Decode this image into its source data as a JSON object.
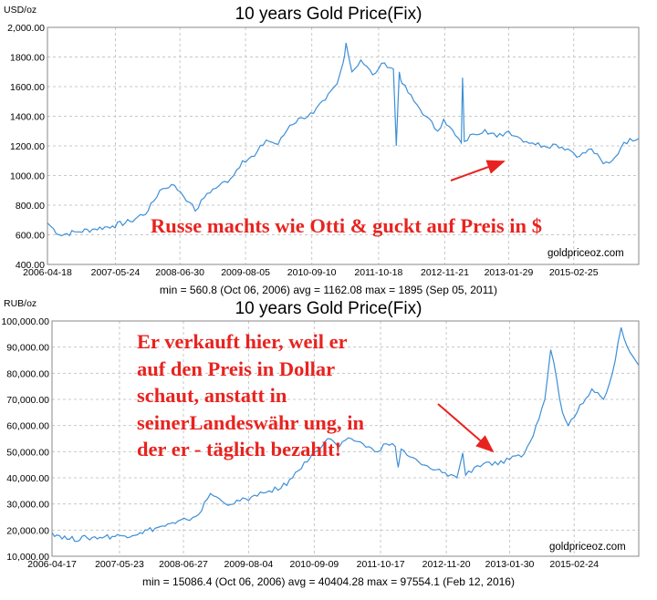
{
  "chart_data": [
    {
      "type": "line",
      "title": "10 years Gold Price(Fix)",
      "unit_label": "USD/oz",
      "x_tick_labels": [
        "2006-04-18",
        "2007-05-24",
        "2008-06-30",
        "2009-08-05",
        "2010-09-10",
        "2011-10-18",
        "2012-11-21",
        "2013-01-29",
        "2015-02-25"
      ],
      "y_tick_labels": [
        "400.00",
        "600.00",
        "800.00",
        "1000.00",
        "1200.00",
        "1400.00",
        "1600.00",
        "1800.00",
        "2,000.00"
      ],
      "ylim": [
        400,
        2000
      ],
      "grid": true,
      "stats": "min = 560.8 (Oct 06, 2006)   avg = 1162.08   max = 1895 (Sep 05, 2011)",
      "credit": "goldpriceoz.com",
      "series": [
        {
          "values": [
            [
              0,
              680
            ],
            [
              0.02,
              600
            ],
            [
              0.05,
              620
            ],
            [
              0.08,
              640
            ],
            [
              0.11,
              660
            ],
            [
              0.14,
              690
            ],
            [
              0.17,
              760
            ],
            [
              0.19,
              900
            ],
            [
              0.21,
              940
            ],
            [
              0.225,
              890
            ],
            [
              0.24,
              820
            ],
            [
              0.25,
              760
            ],
            [
              0.27,
              880
            ],
            [
              0.29,
              930
            ],
            [
              0.31,
              980
            ],
            [
              0.33,
              1100
            ],
            [
              0.35,
              1130
            ],
            [
              0.37,
              1240
            ],
            [
              0.39,
              1210
            ],
            [
              0.41,
              1340
            ],
            [
              0.43,
              1390
            ],
            [
              0.45,
              1420
            ],
            [
              0.47,
              1510
            ],
            [
              0.49,
              1620
            ],
            [
              0.5,
              1760
            ],
            [
              0.505,
              1895
            ],
            [
              0.515,
              1700
            ],
            [
              0.53,
              1780
            ],
            [
              0.55,
              1680
            ],
            [
              0.56,
              1720
            ],
            [
              0.57,
              1760
            ],
            [
              0.585,
              1720
            ],
            [
              0.59,
              1200
            ],
            [
              0.595,
              1700
            ],
            [
              0.6,
              1620
            ],
            [
              0.62,
              1500
            ],
            [
              0.64,
              1400
            ],
            [
              0.66,
              1300
            ],
            [
              0.67,
              1380
            ],
            [
              0.68,
              1330
            ],
            [
              0.69,
              1270
            ],
            [
              0.7,
              1220
            ],
            [
              0.702,
              1660
            ],
            [
              0.705,
              1230
            ],
            [
              0.72,
              1280
            ],
            [
              0.74,
              1310
            ],
            [
              0.76,
              1260
            ],
            [
              0.78,
              1300
            ],
            [
              0.8,
              1250
            ],
            [
              0.82,
              1220
            ],
            [
              0.84,
              1200
            ],
            [
              0.86,
              1210
            ],
            [
              0.88,
              1180
            ],
            [
              0.9,
              1130
            ],
            [
              0.92,
              1180
            ],
            [
              0.94,
              1080
            ],
            [
              0.955,
              1100
            ],
            [
              0.97,
              1190
            ],
            [
              0.985,
              1250
            ],
            [
              1.0,
              1250
            ]
          ]
        }
      ]
    },
    {
      "type": "line",
      "title": "10 years Gold Price(Fix)",
      "unit_label": "RUB/oz",
      "x_tick_labels": [
        "2006-04-17",
        "2007-05-23",
        "2008-06-27",
        "2009-08-04",
        "2010-09-09",
        "2011-10-17",
        "2012-11-20",
        "2013-01-30",
        "2015-02-24"
      ],
      "y_tick_labels": [
        "10,000.00",
        "20,000.00",
        "30,000.00",
        "40,000.00",
        "50,000.00",
        "60,000.00",
        "70,000.00",
        "80,000.00",
        "90,000.00",
        "100,000.00"
      ],
      "ylim": [
        10000,
        100000
      ],
      "grid": true,
      "stats": "min = 15086.4 (Oct 06, 2006)   avg = 40404.28   max = 97554.1 (Feb 12, 2016)",
      "credit": "goldpriceoz.com",
      "series": [
        {
          "values": [
            [
              0,
              19000
            ],
            [
              0.03,
              16500
            ],
            [
              0.06,
              17000
            ],
            [
              0.09,
              17500
            ],
            [
              0.12,
              17800
            ],
            [
              0.15,
              19000
            ],
            [
              0.18,
              21000
            ],
            [
              0.21,
              22500
            ],
            [
              0.23,
              24000
            ],
            [
              0.25,
              26000
            ],
            [
              0.27,
              34000
            ],
            [
              0.29,
              31000
            ],
            [
              0.31,
              30000
            ],
            [
              0.33,
              32000
            ],
            [
              0.35,
              33000
            ],
            [
              0.37,
              35000
            ],
            [
              0.39,
              36000
            ],
            [
              0.41,
              40000
            ],
            [
              0.43,
              46000
            ],
            [
              0.45,
              50000
            ],
            [
              0.47,
              55000
            ],
            [
              0.49,
              52000
            ],
            [
              0.51,
              55000
            ],
            [
              0.53,
              53000
            ],
            [
              0.55,
              50000
            ],
            [
              0.57,
              53000
            ],
            [
              0.585,
              52000
            ],
            [
              0.59,
              44000
            ],
            [
              0.595,
              51000
            ],
            [
              0.61,
              48000
            ],
            [
              0.63,
              45000
            ],
            [
              0.65,
              43000
            ],
            [
              0.67,
              42000
            ],
            [
              0.69,
              40000
            ],
            [
              0.7,
              49500
            ],
            [
              0.705,
              41000
            ],
            [
              0.72,
              44000
            ],
            [
              0.74,
              46000
            ],
            [
              0.76,
              45000
            ],
            [
              0.78,
              47000
            ],
            [
              0.8,
              48000
            ],
            [
              0.82,
              56000
            ],
            [
              0.84,
              70000
            ],
            [
              0.85,
              89000
            ],
            [
              0.86,
              78000
            ],
            [
              0.87,
              65000
            ],
            [
              0.88,
              60000
            ],
            [
              0.9,
              68000
            ],
            [
              0.92,
              74000
            ],
            [
              0.94,
              70000
            ],
            [
              0.955,
              80000
            ],
            [
              0.97,
              97500
            ],
            [
              0.985,
              88000
            ],
            [
              1.0,
              83000
            ]
          ]
        }
      ]
    }
  ],
  "annotations": {
    "top_text": "Russe machts wie Otti & guckt auf Preis in $",
    "bottom_text": "Er verkauft hier, weil er auf den Preis in Dollar schaut, anstatt in seinerLandeswähr ung, in der er - täglich bezahlt!",
    "color": "#e8231f"
  },
  "colors": {
    "series": "#3e8fd6",
    "grid": "#c8c8c8"
  }
}
